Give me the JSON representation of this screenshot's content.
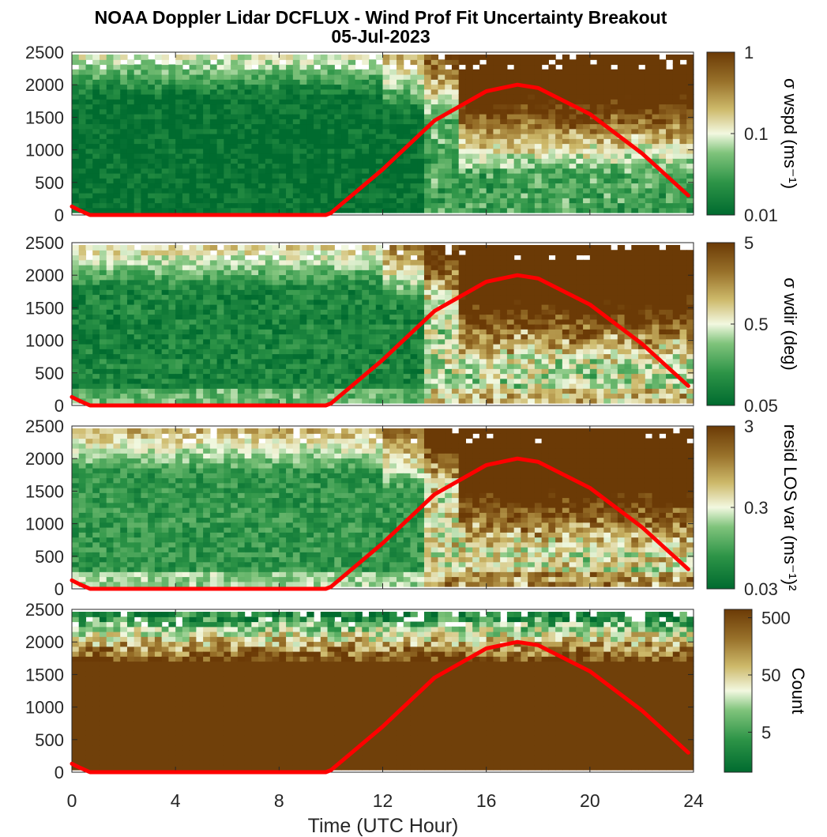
{
  "title": "NOAA Doppler Lidar DCFLUX - Wind Prof Fit Uncertainty Breakout",
  "subtitle": "05-Jul-2023",
  "xlabel": "Time (UTC Hour)",
  "colors": {
    "sun_curve": "#ff0000",
    "low": "#006b2f",
    "mid": "#f2f8e0",
    "high": "#6b3a06"
  },
  "chart_data": [
    {
      "type": "heatmap",
      "panel": "wind-speed-uncertainty",
      "xlim": [
        0,
        24
      ],
      "ylim": [
        0,
        2500
      ],
      "x_ticks": [
        0,
        4,
        8,
        12,
        16,
        20,
        24
      ],
      "y_ticks": [
        0,
        500,
        1000,
        1500,
        2000,
        2500
      ],
      "colorbar_label": "σ wspd (ms⁻¹)",
      "colorbar_scale": "log",
      "colorbar_range": [
        0.01,
        1
      ],
      "colorbar_ticks": [
        "0.01",
        "0.1",
        "1"
      ],
      "solar_curve": {
        "x": [
          0,
          0.3,
          0.7,
          9.8,
          10,
          12,
          14,
          16,
          17.2,
          18,
          20,
          22,
          23.8
        ],
        "y": [
          130,
          70,
          0,
          0,
          30,
          700,
          1450,
          1900,
          2000,
          1950,
          1550,
          950,
          300
        ]
      }
    },
    {
      "type": "heatmap",
      "panel": "wind-direction-uncertainty",
      "xlim": [
        0,
        24
      ],
      "ylim": [
        0,
        2500
      ],
      "x_ticks": [
        0,
        4,
        8,
        12,
        16,
        20,
        24
      ],
      "y_ticks": [
        0,
        500,
        1000,
        1500,
        2000,
        2500
      ],
      "colorbar_label": "σ wdir (deg)",
      "colorbar_scale": "log",
      "colorbar_range": [
        0.05,
        5
      ],
      "colorbar_ticks": [
        "0.05",
        "0.5",
        "5"
      ],
      "solar_curve": {
        "x": [
          0,
          0.3,
          0.7,
          9.8,
          10,
          12,
          14,
          16,
          17.2,
          18,
          20,
          22,
          23.8
        ],
        "y": [
          130,
          70,
          0,
          0,
          30,
          700,
          1450,
          1900,
          2000,
          1950,
          1550,
          950,
          300
        ]
      }
    },
    {
      "type": "heatmap",
      "panel": "residual-los-variance",
      "xlim": [
        0,
        24
      ],
      "ylim": [
        0,
        2500
      ],
      "x_ticks": [
        0,
        4,
        8,
        12,
        16,
        20,
        24
      ],
      "y_ticks": [
        0,
        500,
        1000,
        1500,
        2000,
        2500
      ],
      "colorbar_label": "resid LOS var (ms⁻¹)²",
      "colorbar_scale": "log",
      "colorbar_range": [
        0.03,
        3
      ],
      "colorbar_ticks": [
        "0.03",
        "0.3",
        "3"
      ],
      "solar_curve": {
        "x": [
          0,
          0.3,
          0.7,
          9.8,
          10,
          12,
          14,
          16,
          17.2,
          18,
          20,
          22,
          23.8
        ],
        "y": [
          130,
          70,
          0,
          0,
          30,
          700,
          1450,
          1900,
          2000,
          1950,
          1550,
          950,
          300
        ]
      }
    },
    {
      "type": "heatmap",
      "panel": "count",
      "xlim": [
        0,
        24
      ],
      "ylim": [
        0,
        2500
      ],
      "x_ticks": [
        0,
        4,
        8,
        12,
        16,
        20,
        24
      ],
      "y_ticks": [
        0,
        500,
        1000,
        1500,
        2000,
        2500
      ],
      "colorbar_label": "Count",
      "colorbar_scale": "log",
      "colorbar_range": [
        1,
        700
      ],
      "colorbar_ticks": [
        "5",
        "50",
        "500"
      ],
      "solar_curve": {
        "x": [
          0,
          0.3,
          0.7,
          9.8,
          10,
          12,
          14,
          16,
          17.2,
          18,
          20,
          22,
          23.8
        ],
        "y": [
          130,
          70,
          0,
          0,
          30,
          700,
          1450,
          1900,
          2000,
          1950,
          1550,
          950,
          300
        ]
      }
    }
  ]
}
